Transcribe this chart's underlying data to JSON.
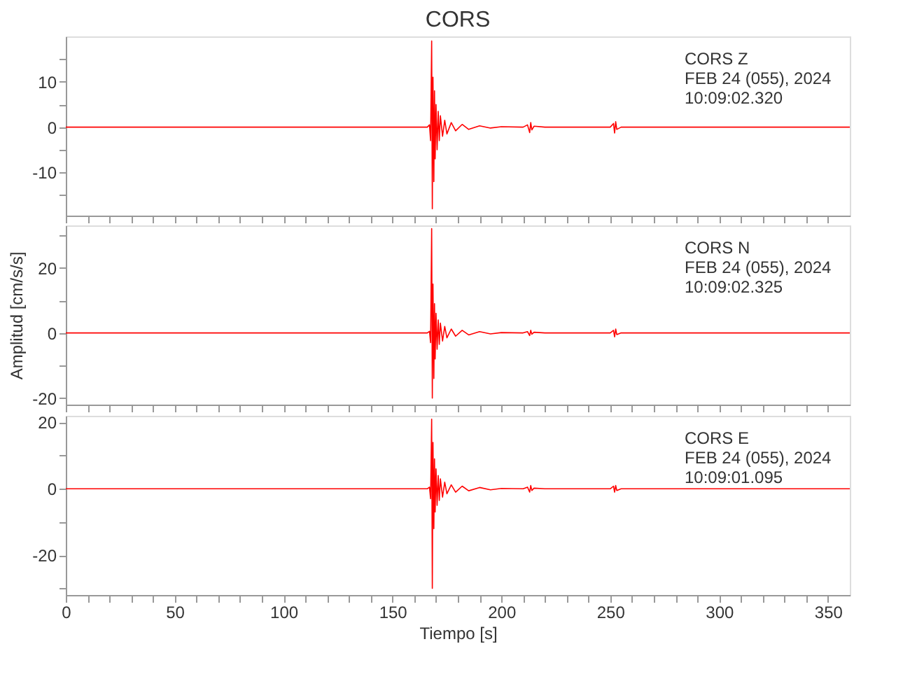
{
  "chart_data": [
    {
      "type": "line",
      "title": "CORS",
      "annotations": [
        "CORS   Z",
        "FEB 24 (055), 2024",
        "10:09:02.320"
      ],
      "tick_labels": "y",
      "grid": false,
      "xlim": [
        0,
        360
      ],
      "xticks": [
        0,
        {
          "value": 10,
          "label": null
        },
        {
          "value": 20,
          "label": null
        },
        {
          "value": 30,
          "label": null
        },
        {
          "value": 40,
          "label": null
        },
        50,
        {
          "value": 60,
          "label": null
        },
        {
          "value": 70,
          "label": null
        },
        {
          "value": 80,
          "label": null
        },
        {
          "value": 90,
          "label": null
        },
        100,
        {
          "value": 110,
          "label": null
        },
        {
          "value": 120,
          "label": null
        },
        {
          "value": 130,
          "label": null
        },
        {
          "value": 140,
          "label": null
        },
        150,
        {
          "value": 160,
          "label": null
        },
        {
          "value": 170,
          "label": null
        },
        {
          "value": 180,
          "label": null
        },
        {
          "value": 190,
          "label": null
        },
        200,
        {
          "value": 210,
          "label": null
        },
        {
          "value": 220,
          "label": null
        },
        {
          "value": 230,
          "label": null
        },
        {
          "value": 240,
          "label": null
        },
        250,
        {
          "value": 260,
          "label": null
        },
        {
          "value": 270,
          "label": null
        },
        {
          "value": 280,
          "label": null
        },
        {
          "value": 290,
          "label": null
        },
        300,
        {
          "value": 310,
          "label": null
        },
        {
          "value": 320,
          "label": null
        },
        {
          "value": 330,
          "label": null
        },
        {
          "value": 340,
          "label": null
        },
        350
      ],
      "ylim": [
        -19.5,
        20
      ],
      "yticks": [
        {
          "value": -15,
          "label": null
        },
        -10,
        {
          "value": -5,
          "label": null
        },
        0,
        {
          "value": 5,
          "label": null
        },
        10,
        {
          "value": 15,
          "label": null
        }
      ],
      "series": [
        {
          "color": "#ff0000",
          "x": [
            0,
            40,
            80,
            120,
            160,
            166,
            167,
            167.5,
            168,
            168.3,
            168.6,
            169,
            169.3,
            169.6,
            170,
            170.5,
            171,
            171.5,
            172,
            173,
            174,
            175,
            177,
            179,
            182,
            185,
            190,
            195,
            200,
            210,
            212,
            213,
            213.5,
            214,
            215,
            220,
            250,
            251.5,
            252,
            252.5,
            253,
            255,
            300,
            360
          ],
          "values": [
            0,
            0,
            0,
            0,
            0,
            0,
            0.5,
            -3,
            19,
            -18,
            11,
            -12,
            8,
            -7,
            5,
            -5,
            3.5,
            -3,
            2.5,
            -2,
            1.5,
            -1.5,
            1,
            -0.8,
            0.6,
            -0.5,
            0.3,
            -0.2,
            0.1,
            0,
            0.5,
            -1.2,
            1,
            -0.6,
            0.2,
            0,
            0,
            0.8,
            -1.3,
            1.2,
            -0.5,
            0,
            0,
            0
          ]
        }
      ]
    },
    {
      "type": "line",
      "ylabel": "Amplitud [cm/s/s]",
      "annotations": [
        "CORS   N",
        "FEB 24 (055), 2024",
        "10:09:02.325"
      ],
      "tick_labels": "y",
      "grid": false,
      "xlim": [
        0,
        360
      ],
      "xticks": [
        0,
        {
          "value": 10,
          "label": null
        },
        {
          "value": 20,
          "label": null
        },
        {
          "value": 30,
          "label": null
        },
        {
          "value": 40,
          "label": null
        },
        50,
        {
          "value": 60,
          "label": null
        },
        {
          "value": 70,
          "label": null
        },
        {
          "value": 80,
          "label": null
        },
        {
          "value": 90,
          "label": null
        },
        100,
        {
          "value": 110,
          "label": null
        },
        {
          "value": 120,
          "label": null
        },
        {
          "value": 130,
          "label": null
        },
        {
          "value": 140,
          "label": null
        },
        150,
        {
          "value": 160,
          "label": null
        },
        {
          "value": 170,
          "label": null
        },
        {
          "value": 180,
          "label": null
        },
        {
          "value": 190,
          "label": null
        },
        200,
        {
          "value": 210,
          "label": null
        },
        {
          "value": 220,
          "label": null
        },
        {
          "value": 230,
          "label": null
        },
        {
          "value": 240,
          "label": null
        },
        250,
        {
          "value": 260,
          "label": null
        },
        {
          "value": 270,
          "label": null
        },
        {
          "value": 280,
          "label": null
        },
        {
          "value": 290,
          "label": null
        },
        300,
        {
          "value": 310,
          "label": null
        },
        {
          "value": 320,
          "label": null
        },
        {
          "value": 330,
          "label": null
        },
        {
          "value": 340,
          "label": null
        },
        350
      ],
      "ylim": [
        -22,
        33
      ],
      "yticks": [
        -20,
        {
          "value": -10,
          "label": null
        },
        0,
        {
          "value": 10,
          "label": null
        },
        20,
        {
          "value": 30,
          "label": null
        }
      ],
      "series": [
        {
          "color": "#ff0000",
          "x": [
            0,
            40,
            80,
            120,
            160,
            166,
            167,
            167.5,
            168,
            168.3,
            168.6,
            169,
            169.3,
            169.6,
            170,
            170.5,
            171,
            171.5,
            172,
            173,
            174,
            175,
            177,
            179,
            182,
            185,
            190,
            195,
            200,
            210,
            212,
            213,
            213.5,
            214,
            215,
            220,
            250,
            251.5,
            252,
            252.5,
            253,
            255,
            300,
            360
          ],
          "values": [
            0,
            0,
            0,
            0,
            0,
            0,
            0.5,
            -3,
            32,
            -20,
            15,
            -14,
            9,
            -8,
            6,
            -5,
            4,
            -3.5,
            3,
            -2.5,
            2,
            -1.5,
            1.2,
            -1,
            0.8,
            -0.6,
            0.4,
            -0.3,
            0.1,
            0,
            0.4,
            -0.8,
            0.8,
            -0.4,
            0.2,
            0,
            0,
            0.8,
            -1.2,
            1.2,
            -0.5,
            0,
            0,
            0
          ]
        }
      ]
    },
    {
      "type": "line",
      "xlabel": "Tiempo [s]",
      "annotations": [
        "CORS   E",
        "FEB 24 (055), 2024",
        "10:09:01.095"
      ],
      "grid": false,
      "xlim": [
        0,
        360
      ],
      "xticks": [
        0,
        {
          "value": 10,
          "label": null
        },
        {
          "value": 20,
          "label": null
        },
        {
          "value": 30,
          "label": null
        },
        {
          "value": 40,
          "label": null
        },
        50,
        {
          "value": 60,
          "label": null
        },
        {
          "value": 70,
          "label": null
        },
        {
          "value": 80,
          "label": null
        },
        {
          "value": 90,
          "label": null
        },
        100,
        {
          "value": 110,
          "label": null
        },
        {
          "value": 120,
          "label": null
        },
        {
          "value": 130,
          "label": null
        },
        {
          "value": 140,
          "label": null
        },
        150,
        {
          "value": 160,
          "label": null
        },
        {
          "value": 170,
          "label": null
        },
        {
          "value": 180,
          "label": null
        },
        {
          "value": 190,
          "label": null
        },
        200,
        {
          "value": 210,
          "label": null
        },
        {
          "value": 220,
          "label": null
        },
        {
          "value": 230,
          "label": null
        },
        {
          "value": 240,
          "label": null
        },
        250,
        {
          "value": 260,
          "label": null
        },
        {
          "value": 270,
          "label": null
        },
        {
          "value": 280,
          "label": null
        },
        {
          "value": 290,
          "label": null
        },
        300,
        {
          "value": 310,
          "label": null
        },
        {
          "value": 320,
          "label": null
        },
        {
          "value": 330,
          "label": null
        },
        {
          "value": 340,
          "label": null
        },
        350
      ],
      "ylim": [
        -32,
        22
      ],
      "yticks": [
        {
          "value": -30,
          "label": null
        },
        -20,
        {
          "value": -10,
          "label": null
        },
        0,
        {
          "value": 10,
          "label": null
        },
        20
      ],
      "series": [
        {
          "color": "#ff0000",
          "x": [
            0,
            40,
            80,
            120,
            160,
            166,
            167,
            167.5,
            168,
            168.3,
            168.6,
            169,
            169.3,
            169.6,
            170,
            170.5,
            171,
            171.5,
            172,
            173,
            174,
            175,
            177,
            179,
            182,
            185,
            190,
            195,
            200,
            210,
            212,
            213,
            213.5,
            214,
            215,
            220,
            250,
            251.5,
            252,
            252.5,
            253,
            255,
            300,
            360
          ],
          "values": [
            0,
            0,
            0,
            0,
            0,
            0,
            0.5,
            -3,
            21,
            -30,
            14,
            -12,
            9,
            -7,
            6,
            -5,
            4,
            -3.5,
            3,
            -2.5,
            2,
            -1.5,
            1.2,
            -1,
            0.8,
            -0.6,
            0.4,
            -0.3,
            0.1,
            0,
            0.5,
            -1,
            1,
            -0.5,
            0.2,
            0,
            0,
            0.8,
            -1,
            1,
            -0.5,
            0,
            0,
            0
          ]
        }
      ]
    }
  ]
}
